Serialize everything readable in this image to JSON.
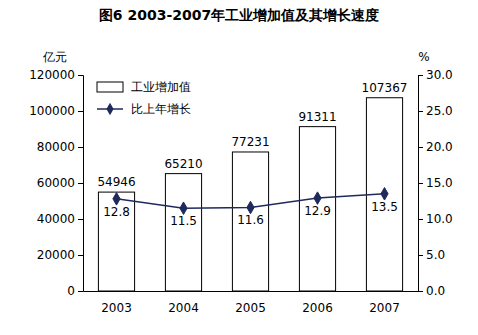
{
  "chart_data": {
    "type": "bar",
    "title": "图6  2003-2007年工业增加值及其增长速度",
    "y_label": "亿元",
    "y2_label": "%",
    "categories": [
      "2003",
      "2004",
      "2005",
      "2006",
      "2007"
    ],
    "series": [
      {
        "name": "工业增加值",
        "type": "bar",
        "color": "#ffffff",
        "values": [
          54946,
          65210,
          77231,
          91311,
          107367
        ]
      },
      {
        "name": "比上年增长",
        "type": "line",
        "color": "#1f2a5c",
        "marker": "diamond",
        "axis": "y2",
        "values": [
          12.8,
          11.5,
          11.6,
          12.9,
          13.5
        ]
      }
    ],
    "ylim": [
      0,
      120000
    ],
    "yticks": [
      0,
      20000,
      40000,
      60000,
      80000,
      100000,
      120000
    ],
    "y2lim": [
      0,
      30
    ],
    "y2ticks": [
      {
        "value": 0,
        "label": "0.0"
      },
      {
        "value": 5,
        "label": "5.0"
      },
      {
        "value": 10,
        "label": "10.0"
      },
      {
        "value": 15,
        "label": "15.0"
      },
      {
        "value": 20,
        "label": "20.0"
      },
      {
        "value": 25,
        "label": "25.0"
      },
      {
        "value": 30,
        "label": "30.0"
      }
    ],
    "data_labels": true,
    "legend": "upper left"
  }
}
